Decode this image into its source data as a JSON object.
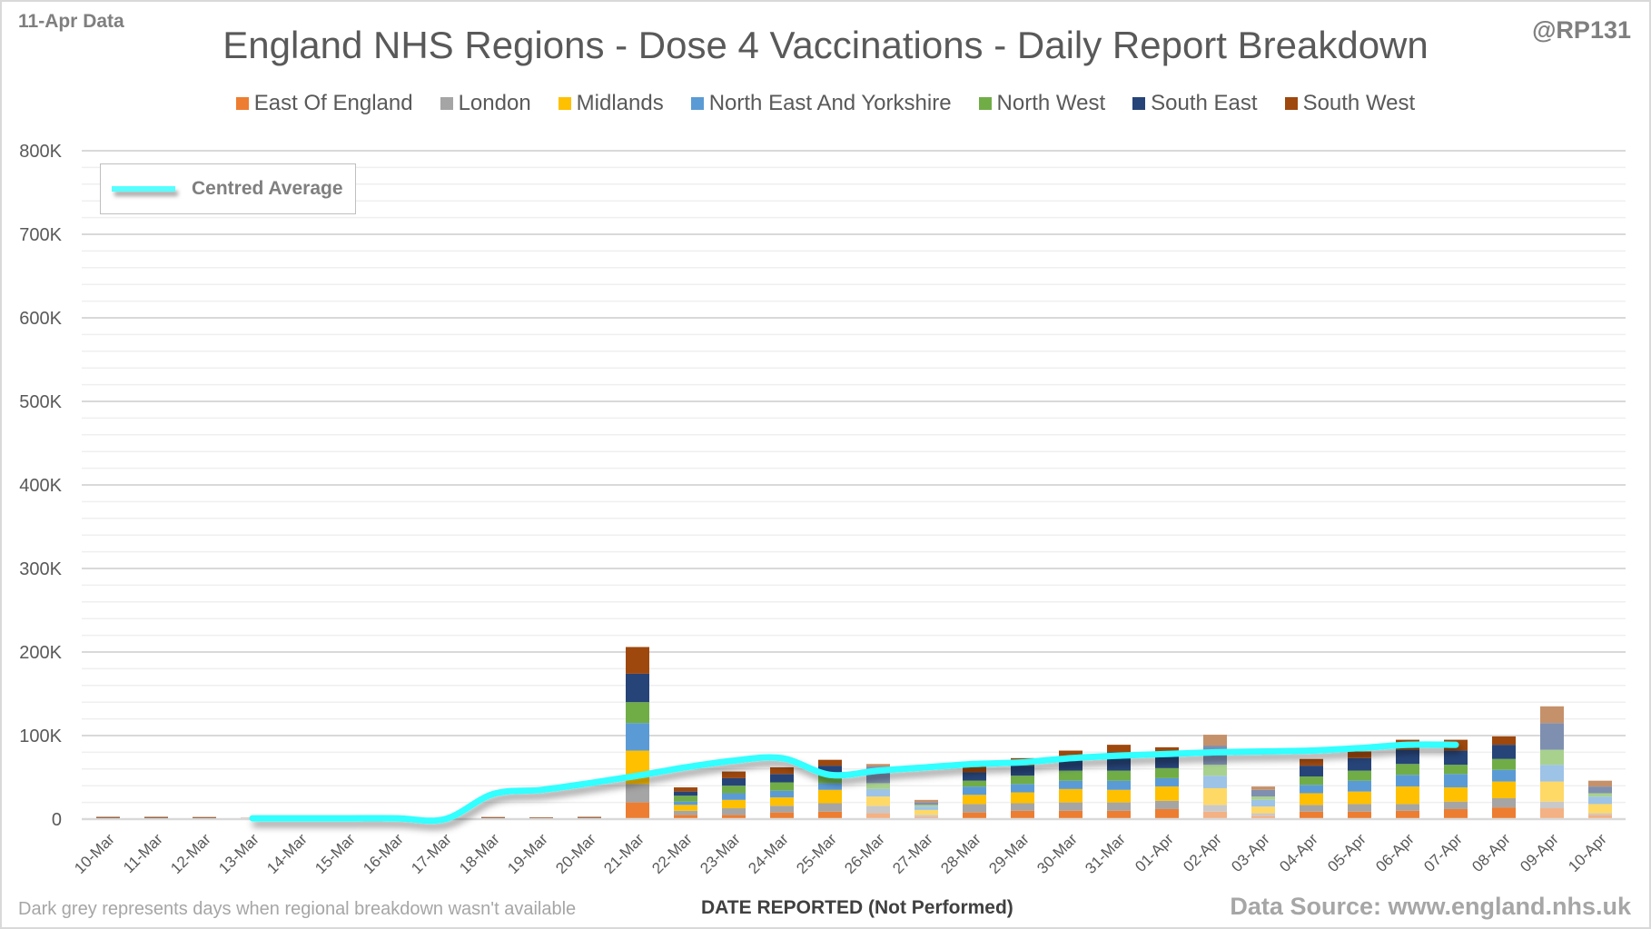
{
  "header": {
    "data_date": "11-Apr Data",
    "author": "@RP131"
  },
  "footer": {
    "note": "Dark grey represents days when regional breakdown wasn't available",
    "source": "Data Source: www.england.nhs.uk"
  },
  "average_legend": {
    "label": "Centred Average",
    "color": "#33FFFF"
  },
  "chart_data": {
    "type": "bar",
    "stacked": true,
    "title": "England NHS Regions - Dose 4 Vaccinations - Daily Report Breakdown",
    "xlabel": "DATE REPORTED (Not Performed)",
    "ylabel": "",
    "ylim": [
      0,
      800000
    ],
    "yticks": [
      0,
      100000,
      200000,
      300000,
      400000,
      500000,
      600000,
      700000,
      800000
    ],
    "ytick_labels": [
      "0",
      "100K",
      "200K",
      "300K",
      "400K",
      "500K",
      "600K",
      "700K",
      "800K"
    ],
    "grid": true,
    "legend_position": "top",
    "categories": [
      "10-Mar",
      "11-Mar",
      "12-Mar",
      "13-Mar",
      "14-Mar",
      "15-Mar",
      "16-Mar",
      "17-Mar",
      "18-Mar",
      "19-Mar",
      "20-Mar",
      "21-Mar",
      "22-Mar",
      "23-Mar",
      "24-Mar",
      "25-Mar",
      "26-Mar",
      "27-Mar",
      "28-Mar",
      "29-Mar",
      "30-Mar",
      "31-Mar",
      "01-Apr",
      "02-Apr",
      "03-Apr",
      "04-Apr",
      "05-Apr",
      "06-Apr",
      "07-Apr",
      "08-Apr",
      "09-Apr",
      "10-Apr"
    ],
    "light_days": [
      "26-Mar",
      "27-Mar",
      "02-Apr",
      "03-Apr",
      "09-Apr",
      "10-Apr"
    ],
    "series": [
      {
        "name": "East Of England",
        "color": "#ED7D31",
        "light": "#F4B183",
        "values": [
          400,
          300,
          400,
          0,
          0,
          0,
          0,
          0,
          300,
          300,
          0,
          20000,
          5000,
          5000,
          8000,
          9000,
          7000,
          3000,
          8000,
          10000,
          10000,
          10000,
          12000,
          9000,
          4000,
          9000,
          9000,
          10000,
          12000,
          14000,
          13000,
          5000
        ]
      },
      {
        "name": "London",
        "color": "#A5A5A5",
        "light": "#C9C9C9",
        "values": [
          300,
          300,
          300,
          0,
          0,
          0,
          0,
          0,
          300,
          300,
          300,
          22000,
          5000,
          8000,
          8000,
          10000,
          9000,
          2000,
          10000,
          9000,
          10000,
          10000,
          10000,
          8000,
          3000,
          8000,
          9000,
          8000,
          9000,
          11000,
          8000,
          2000
        ]
      },
      {
        "name": "Midlands",
        "color": "#FFC000",
        "light": "#FFD966",
        "values": [
          400,
          300,
          300,
          0,
          0,
          0,
          0,
          0,
          300,
          300,
          300,
          40000,
          7000,
          10000,
          10000,
          16000,
          11000,
          6000,
          11000,
          13000,
          16000,
          15000,
          17000,
          20000,
          8000,
          14000,
          15000,
          21000,
          17000,
          20000,
          24000,
          11000
        ]
      },
      {
        "name": "North East And Yorkshire",
        "color": "#5B9BD5",
        "light": "#9DC3E6",
        "values": [
          300,
          500,
          300,
          0,
          0,
          0,
          0,
          0,
          300,
          300,
          300,
          33000,
          4000,
          8000,
          8000,
          8000,
          9000,
          4000,
          10000,
          10000,
          10000,
          11000,
          10000,
          15000,
          8000,
          10000,
          13000,
          14000,
          16000,
          14000,
          20000,
          9000
        ]
      },
      {
        "name": "North West",
        "color": "#70AD47",
        "light": "#A9D18E",
        "values": [
          500,
          300,
          500,
          0,
          0,
          0,
          0,
          0,
          300,
          300,
          300,
          25000,
          7000,
          9000,
          10000,
          12000,
          7000,
          2000,
          7000,
          10000,
          12000,
          12000,
          12000,
          13000,
          4000,
          10000,
          12000,
          13000,
          11000,
          13000,
          18000,
          4000
        ]
      },
      {
        "name": "South East",
        "color": "#264478",
        "light": "#7F8FAF",
        "values": [
          300,
          500,
          300,
          0,
          0,
          0,
          0,
          0,
          500,
          300,
          300,
          34000,
          5000,
          9000,
          10000,
          9000,
          20000,
          3000,
          10000,
          12000,
          17000,
          22000,
          20000,
          23000,
          8000,
          13000,
          15000,
          17000,
          17000,
          17000,
          32000,
          8000
        ]
      },
      {
        "name": "South West",
        "color": "#9E480E",
        "light": "#C5916A",
        "values": [
          500,
          500,
          400,
          1500,
          0,
          0,
          0,
          0,
          500,
          300,
          1200,
          32000,
          5000,
          8000,
          8000,
          7000,
          3000,
          3000,
          7000,
          9000,
          7000,
          9000,
          5000,
          13000,
          4000,
          8000,
          8000,
          12000,
          13000,
          10000,
          20000,
          7000
        ]
      }
    ],
    "line_series": {
      "name": "Centred Average",
      "color": "#33FFFF",
      "start_index": 3,
      "values": [
        1000,
        1000,
        1000,
        1000,
        0,
        30000,
        35000,
        43000,
        52000,
        62000,
        70000,
        73000,
        53000,
        58000,
        62000,
        66000,
        68000,
        73000,
        76000,
        78000,
        80000,
        81000,
        82000,
        85000,
        89000,
        89000
      ]
    }
  }
}
